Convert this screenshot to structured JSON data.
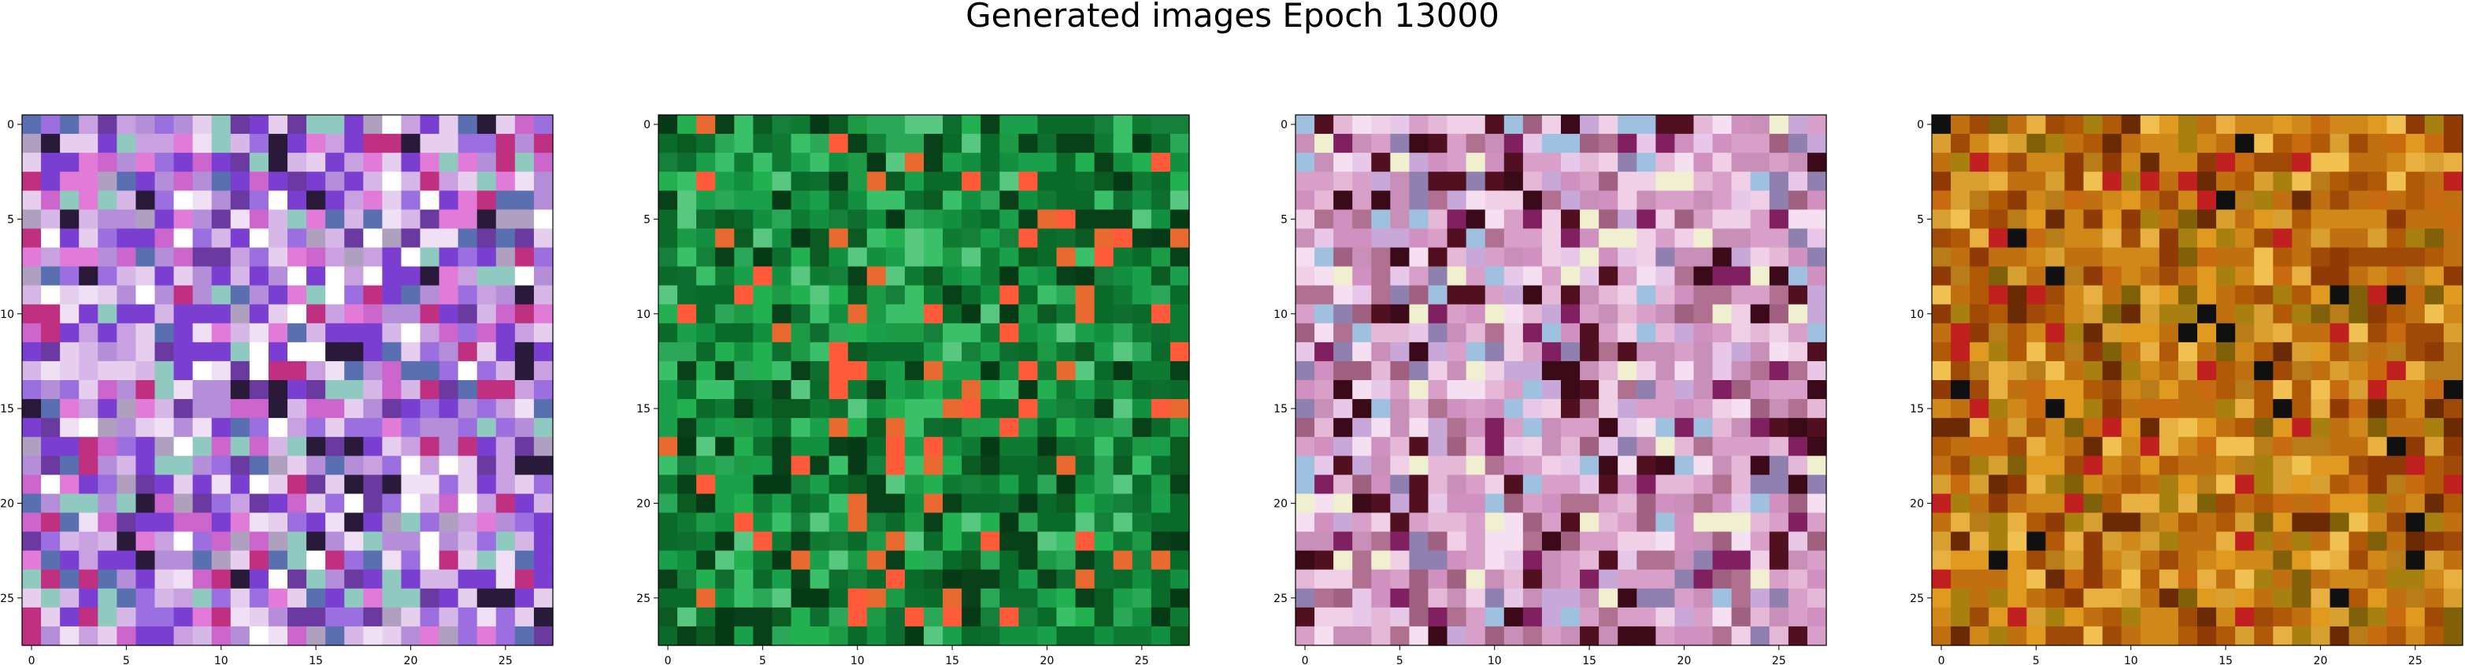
{
  "figure": {
    "title": "Generated images Epoch 13000"
  },
  "chart_data": [
    {
      "type": "heatmap",
      "grid_size": [
        28,
        28
      ],
      "x_ticks": [
        0,
        5,
        10,
        15,
        20,
        25
      ],
      "y_ticks": [
        0,
        5,
        10,
        15,
        20,
        25
      ],
      "xlim": [
        -0.5,
        27.5
      ],
      "ylim": [
        27.5,
        -0.5
      ],
      "grid": false,
      "palette": [
        "#7a3fd0",
        "#9b6fe0",
        "#b48ed8",
        "#c9a0e0",
        "#d7b7e8",
        "#e6cfee",
        "#f0e0f5",
        "#cc66cc",
        "#e27ad8",
        "#8fc9c0",
        "#5a6fb0",
        "#6a3aa0",
        "#b0a0c0",
        "#2a1a3a",
        "#ffffff",
        "#c03080"
      ]
    },
    {
      "type": "heatmap",
      "grid_size": [
        28,
        28
      ],
      "x_ticks": [
        0,
        5,
        10,
        15,
        20,
        25
      ],
      "y_ticks": [
        0,
        5,
        10,
        15,
        20,
        25
      ],
      "xlim": [
        -0.5,
        27.5
      ],
      "ylim": [
        27.5,
        -0.5
      ],
      "grid": false,
      "palette": [
        "#0a6a2a",
        "#0e7a32",
        "#129040",
        "#1aa04a",
        "#0b5a22",
        "#08401a",
        "#22b050",
        "#3ac068",
        "#14803a",
        "#0d6e30",
        "#1c9a46",
        "#063a16",
        "#2aa858",
        "#58c880",
        "#ff5a3a",
        "#e86a30"
      ]
    },
    {
      "type": "heatmap",
      "grid_size": [
        28,
        28
      ],
      "x_ticks": [
        0,
        5,
        10,
        15,
        20,
        25
      ],
      "y_ticks": [
        0,
        5,
        10,
        15,
        20,
        25
      ],
      "xlim": [
        -0.5,
        27.5
      ],
      "ylim": [
        27.5,
        -0.5
      ],
      "grid": false,
      "palette": [
        "#d8a0c8",
        "#e6b8d8",
        "#c890b8",
        "#f0d0e6",
        "#b07090",
        "#d090c0",
        "#e8c8e8",
        "#a06080",
        "#f4e0f0",
        "#c8a8d8",
        "#9080b0",
        "#501020",
        "#a0c0e0",
        "#f0f0d0",
        "#802060",
        "#3a0a18"
      ]
    },
    {
      "type": "heatmap",
      "grid_size": [
        28,
        28
      ],
      "x_ticks": [
        0,
        5,
        10,
        15,
        20,
        25
      ],
      "y_ticks": [
        0,
        5,
        10,
        15,
        20,
        25
      ],
      "xlim": [
        -0.5,
        27.5
      ],
      "ylim": [
        27.5,
        -0.5
      ],
      "grid": false,
      "palette": [
        "#c07010",
        "#d08818",
        "#b05a08",
        "#e09a20",
        "#a04a08",
        "#c86a10",
        "#d8a030",
        "#903a06",
        "#b87c18",
        "#e8b040",
        "#806008",
        "#a88010",
        "#6a2a04",
        "#f0c050",
        "#101010",
        "#c02020"
      ]
    }
  ]
}
